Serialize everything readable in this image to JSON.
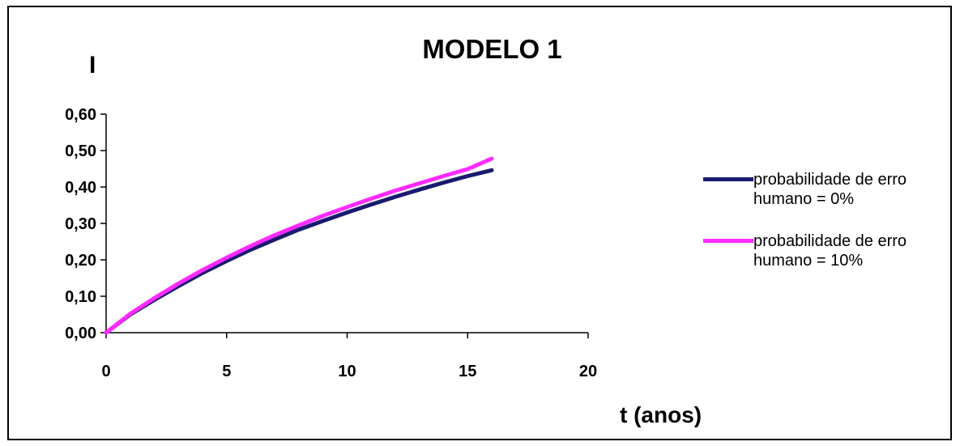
{
  "chart_data": {
    "type": "line",
    "title": "MODELO 1",
    "ylabel": "I",
    "xlabel": "t (anos)",
    "xlim": [
      0,
      20
    ],
    "ylim": [
      0,
      0.6
    ],
    "x_ticks": [
      "0",
      "5",
      "10",
      "15",
      "20"
    ],
    "y_ticks": [
      "0,00",
      "0,10",
      "0,20",
      "0,30",
      "0,40",
      "0,50",
      "0,60"
    ],
    "legend_position": "right",
    "grid": false,
    "series": [
      {
        "name": "probabilidade de erro humano = 0%",
        "color": "#1a1a70",
        "x": [
          0,
          1,
          2,
          3,
          4,
          5,
          6,
          7,
          8,
          9,
          10,
          11,
          12,
          13,
          14,
          15,
          16
        ],
        "y": [
          0,
          0.05,
          0.09,
          0.128,
          0.164,
          0.197,
          0.228,
          0.256,
          0.283,
          0.307,
          0.33,
          0.352,
          0.373,
          0.393,
          0.412,
          0.43,
          0.446
        ]
      },
      {
        "name": "probabilidade de erro humano = 10%",
        "color": "#ff2bff",
        "x": [
          0,
          1,
          2,
          3,
          4,
          5,
          6,
          7,
          8,
          9,
          10,
          11,
          12,
          13,
          14,
          15,
          16
        ],
        "y": [
          0,
          0.052,
          0.095,
          0.135,
          0.172,
          0.206,
          0.238,
          0.268,
          0.295,
          0.321,
          0.345,
          0.368,
          0.39,
          0.41,
          0.43,
          0.449,
          0.478
        ]
      }
    ]
  }
}
